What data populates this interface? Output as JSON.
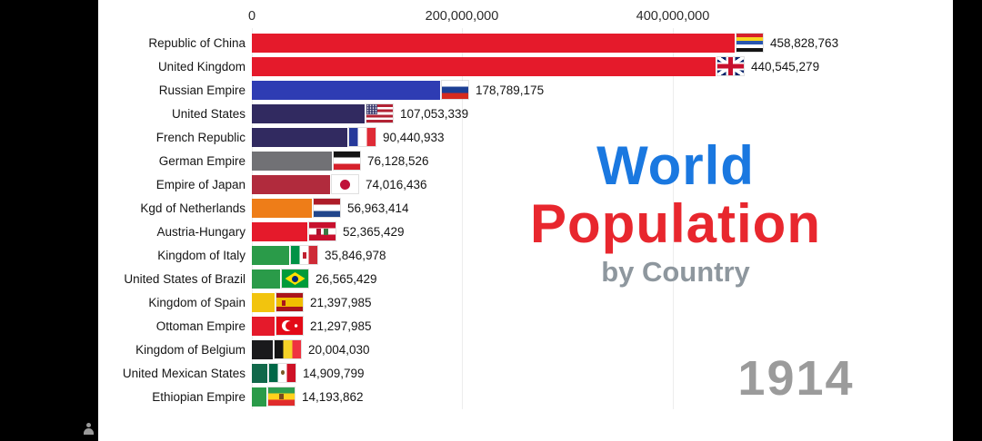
{
  "chart_data": {
    "type": "bar",
    "orientation": "horizontal",
    "title": {
      "line1": "World",
      "line2": "Population",
      "subtitle": "by Country"
    },
    "year": "1914",
    "axis": {
      "ticks": [
        {
          "label": "0",
          "value": 0
        },
        {
          "label": "200,000,000",
          "value": 200000000
        },
        {
          "label": "400,000,000",
          "value": 400000000
        }
      ],
      "max_value": 400000000
    },
    "legend_position": "none",
    "grid": "faint-vertical",
    "colors": {
      "title_blue": "#1a78e0",
      "title_red": "#e8272e",
      "subtitle_gray": "#8e979e",
      "year_gray": "#9b9b9b"
    },
    "countries": [
      {
        "name": "Republic of China",
        "value": 458828763,
        "value_label": "458,828,763",
        "bar_color": "#e51a2b",
        "flag": "roc"
      },
      {
        "name": "United Kingdom",
        "value": 440545279,
        "value_label": "440,545,279",
        "bar_color": "#e51a2b",
        "flag": "uk"
      },
      {
        "name": "Russian Empire",
        "value": 178789175,
        "value_label": "178,789,175",
        "bar_color": "#2e3cb3",
        "flag": "russia"
      },
      {
        "name": "United States",
        "value": 107053339,
        "value_label": "107,053,339",
        "bar_color": "#312a60",
        "flag": "usa"
      },
      {
        "name": "French Republic",
        "value": 90440933,
        "value_label": "90,440,933",
        "bar_color": "#312a60",
        "flag": "france"
      },
      {
        "name": "German Empire",
        "value": 76128526,
        "value_label": "76,128,526",
        "bar_color": "#717175",
        "flag": "german-empire"
      },
      {
        "name": "Empire of Japan",
        "value": 74016436,
        "value_label": "74,016,436",
        "bar_color": "#b12b3d",
        "flag": "japan"
      },
      {
        "name": "Kgd of Netherlands",
        "value": 56963414,
        "value_label": "56,963,414",
        "bar_color": "#ee7d18",
        "flag": "netherlands"
      },
      {
        "name": "Austria-Hungary",
        "value": 52365429,
        "value_label": "52,365,429",
        "bar_color": "#e51a2b",
        "flag": "austria-hungary"
      },
      {
        "name": "Kingdom of Italy",
        "value": 35846978,
        "value_label": "35,846,978",
        "bar_color": "#2a9b49",
        "flag": "italy"
      },
      {
        "name": "United States of Brazil",
        "value": 26565429,
        "value_label": "26,565,429",
        "bar_color": "#2a9b49",
        "flag": "brazil"
      },
      {
        "name": "Kingdom of Spain",
        "value": 21397985,
        "value_label": "21,397,985",
        "bar_color": "#f2c40e",
        "flag": "spain"
      },
      {
        "name": "Ottoman Empire",
        "value": 21297985,
        "value_label": "21,297,985",
        "bar_color": "#e51a2b",
        "flag": "ottoman"
      },
      {
        "name": "Kingdom of Belgium",
        "value": 20004030,
        "value_label": "20,004,030",
        "bar_color": "#1a1a1c",
        "flag": "belgium"
      },
      {
        "name": "United Mexican States",
        "value": 14909799,
        "value_label": "14,909,799",
        "bar_color": "#11684a",
        "flag": "mexico"
      },
      {
        "name": "Ethiopian Empire",
        "value": 14193862,
        "value_label": "14,193,862",
        "bar_color": "#2a9b49",
        "flag": "ethiopia"
      }
    ]
  }
}
